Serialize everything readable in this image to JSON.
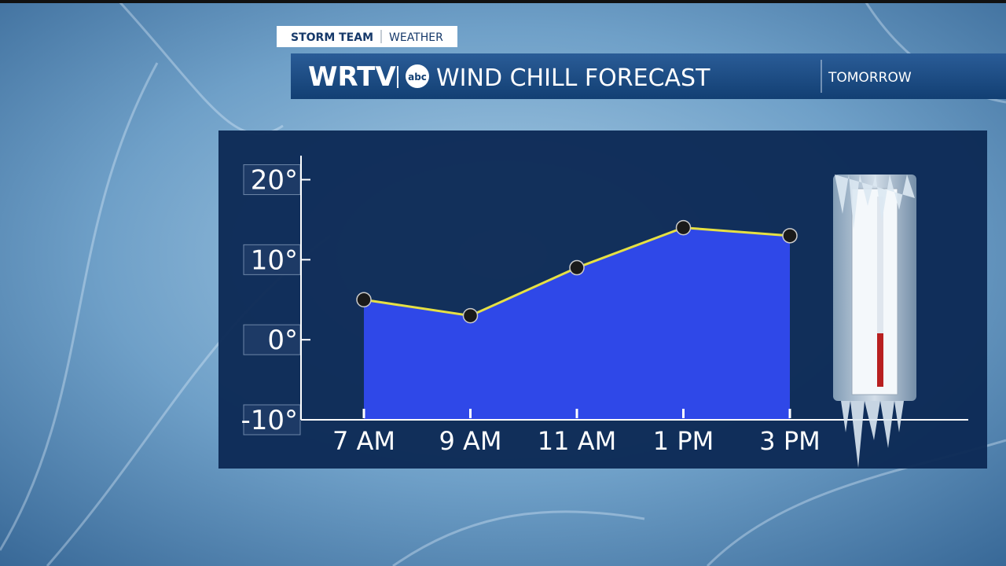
{
  "header": {
    "tag": "STORM TEAM",
    "tag_section": "WEATHER",
    "station": "WRTV",
    "network": "abc",
    "title": "WIND CHILL FORECAST",
    "period": "TOMORROW"
  },
  "chart_data": {
    "type": "area",
    "categories": [
      "7 AM",
      "9 AM",
      "11 AM",
      "1 PM",
      "3 PM"
    ],
    "values": [
      5,
      3,
      9,
      14,
      13
    ],
    "color": "#2f48e8",
    "line_color": "#e6e043",
    "marker_color": "#1a1a1a",
    "ylim": [
      -10,
      23
    ],
    "yticks": [
      {
        "value": 20,
        "label": "20°"
      },
      {
        "value": 10,
        "label": "10°"
      },
      {
        "value": 0,
        "label": "0°"
      },
      {
        "value": -10,
        "label": "-10°"
      }
    ],
    "grid": false
  }
}
